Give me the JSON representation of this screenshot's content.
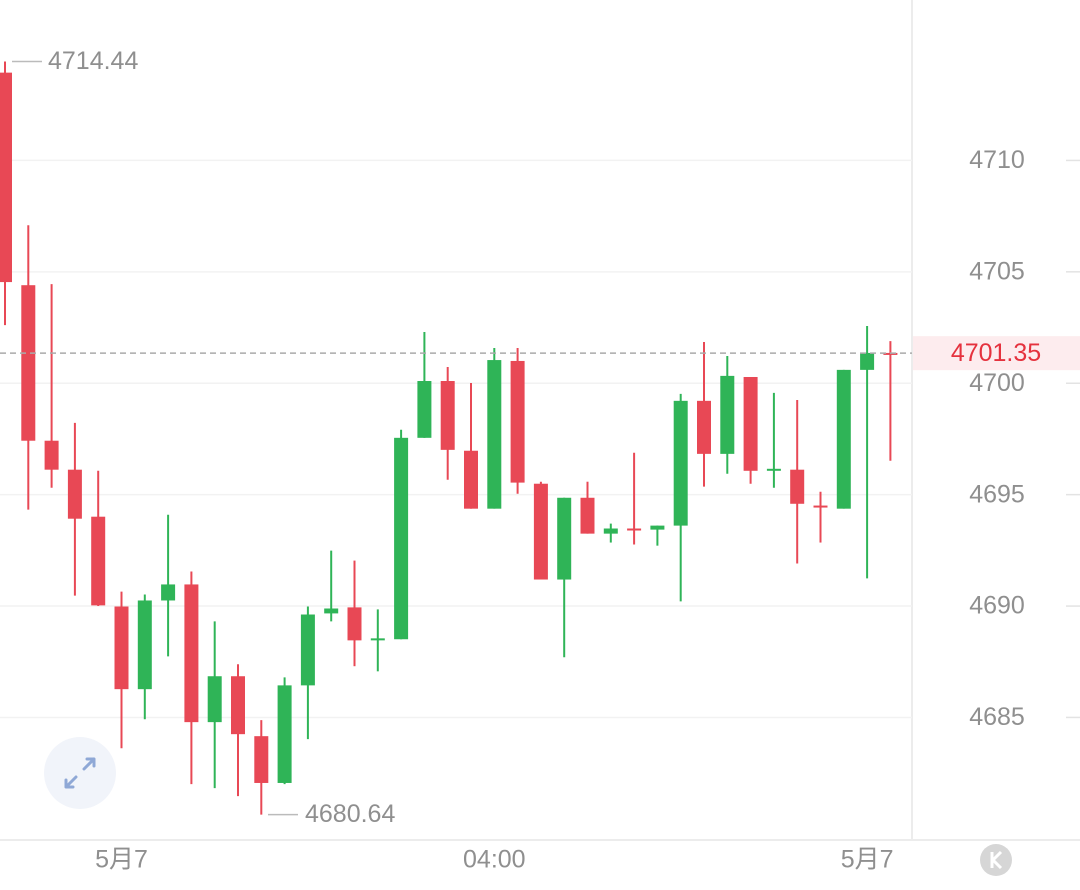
{
  "chart_data": {
    "type": "candlestick",
    "categories": [
      null,
      null,
      null,
      null,
      null,
      "5月7",
      null,
      null,
      null,
      null,
      null,
      null,
      null,
      null,
      null,
      null,
      null,
      null,
      null,
      null,
      null,
      "04:00",
      null,
      null,
      null,
      null,
      null,
      null,
      null,
      null,
      null,
      null,
      null,
      null,
      null,
      null,
      null,
      "5月7",
      null
    ],
    "open": [
      4713.94,
      4704.4,
      4697.42,
      4696.12,
      4694.01,
      4689.98,
      4686.27,
      4690.25,
      4690.97,
      4684.79,
      4686.85,
      4684.16,
      4682.06,
      4686.44,
      4689.67,
      4689.94,
      4688.46,
      4688.51,
      4697.55,
      4700.1,
      4696.97,
      4694.37,
      4701.0,
      4695.49,
      4691.19,
      4694.86,
      4693.25,
      4693.48,
      4693.43,
      4693.61,
      4699.21,
      4696.83,
      4700.28,
      4696.07,
      4696.12,
      4694.51,
      4694.37,
      4700.6,
      4701.36
    ],
    "high": [
      4714.44,
      4707.09,
      4704.45,
      4698.22,
      4696.07,
      4690.65,
      4690.52,
      4694.1,
      4691.55,
      4689.31,
      4687.39,
      4684.88,
      4686.8,
      4689.98,
      4692.49,
      4692.04,
      4689.85,
      4697.91,
      4702.3,
      4700.73,
      4700.01,
      4701.58,
      4701.58,
      4695.58,
      4694.86,
      4695.58,
      4693.7,
      4696.88,
      4693.61,
      4699.52,
      4701.85,
      4701.22,
      4700.28,
      4699.57,
      4699.25,
      4695.13,
      4700.6,
      4702.57,
      4701.89
    ],
    "low": [
      4702.61,
      4694.33,
      4695.31,
      4690.47,
      4690.0,
      4683.62,
      4684.92,
      4687.74,
      4682.01,
      4681.83,
      4681.47,
      4680.64,
      4682.01,
      4684.03,
      4689.31,
      4687.3,
      4687.07,
      4688.51,
      4697.55,
      4695.67,
      4694.37,
      4694.37,
      4695.04,
      4691.19,
      4687.7,
      4693.25,
      4692.85,
      4692.76,
      4692.71,
      4690.21,
      4695.36,
      4695.94,
      4695.49,
      4695.31,
      4691.91,
      4692.85,
      4694.37,
      4691.24,
      4696.52
    ],
    "close": [
      4704.54,
      4697.42,
      4696.12,
      4693.92,
      4690.03,
      4686.27,
      4690.25,
      4690.97,
      4684.79,
      4686.85,
      4684.25,
      4682.06,
      4686.44,
      4689.62,
      4689.89,
      4688.46,
      4688.55,
      4697.55,
      4700.1,
      4697.01,
      4694.37,
      4701.04,
      4695.54,
      4691.19,
      4694.86,
      4693.25,
      4693.48,
      4693.39,
      4693.61,
      4699.21,
      4696.83,
      4700.33,
      4696.07,
      4696.16,
      4694.59,
      4694.42,
      4700.6,
      4701.36,
      4701.35
    ],
    "up_color": "#2fb457",
    "down_color": "#e84855",
    "ylim": [
      4679.5,
      4717.2
    ],
    "yticks": [
      4685,
      4690,
      4695,
      4700,
      4705,
      4710
    ],
    "grid": true,
    "high_label": 4714.44,
    "low_label": 4680.64,
    "last_price": 4701.35
  }
}
